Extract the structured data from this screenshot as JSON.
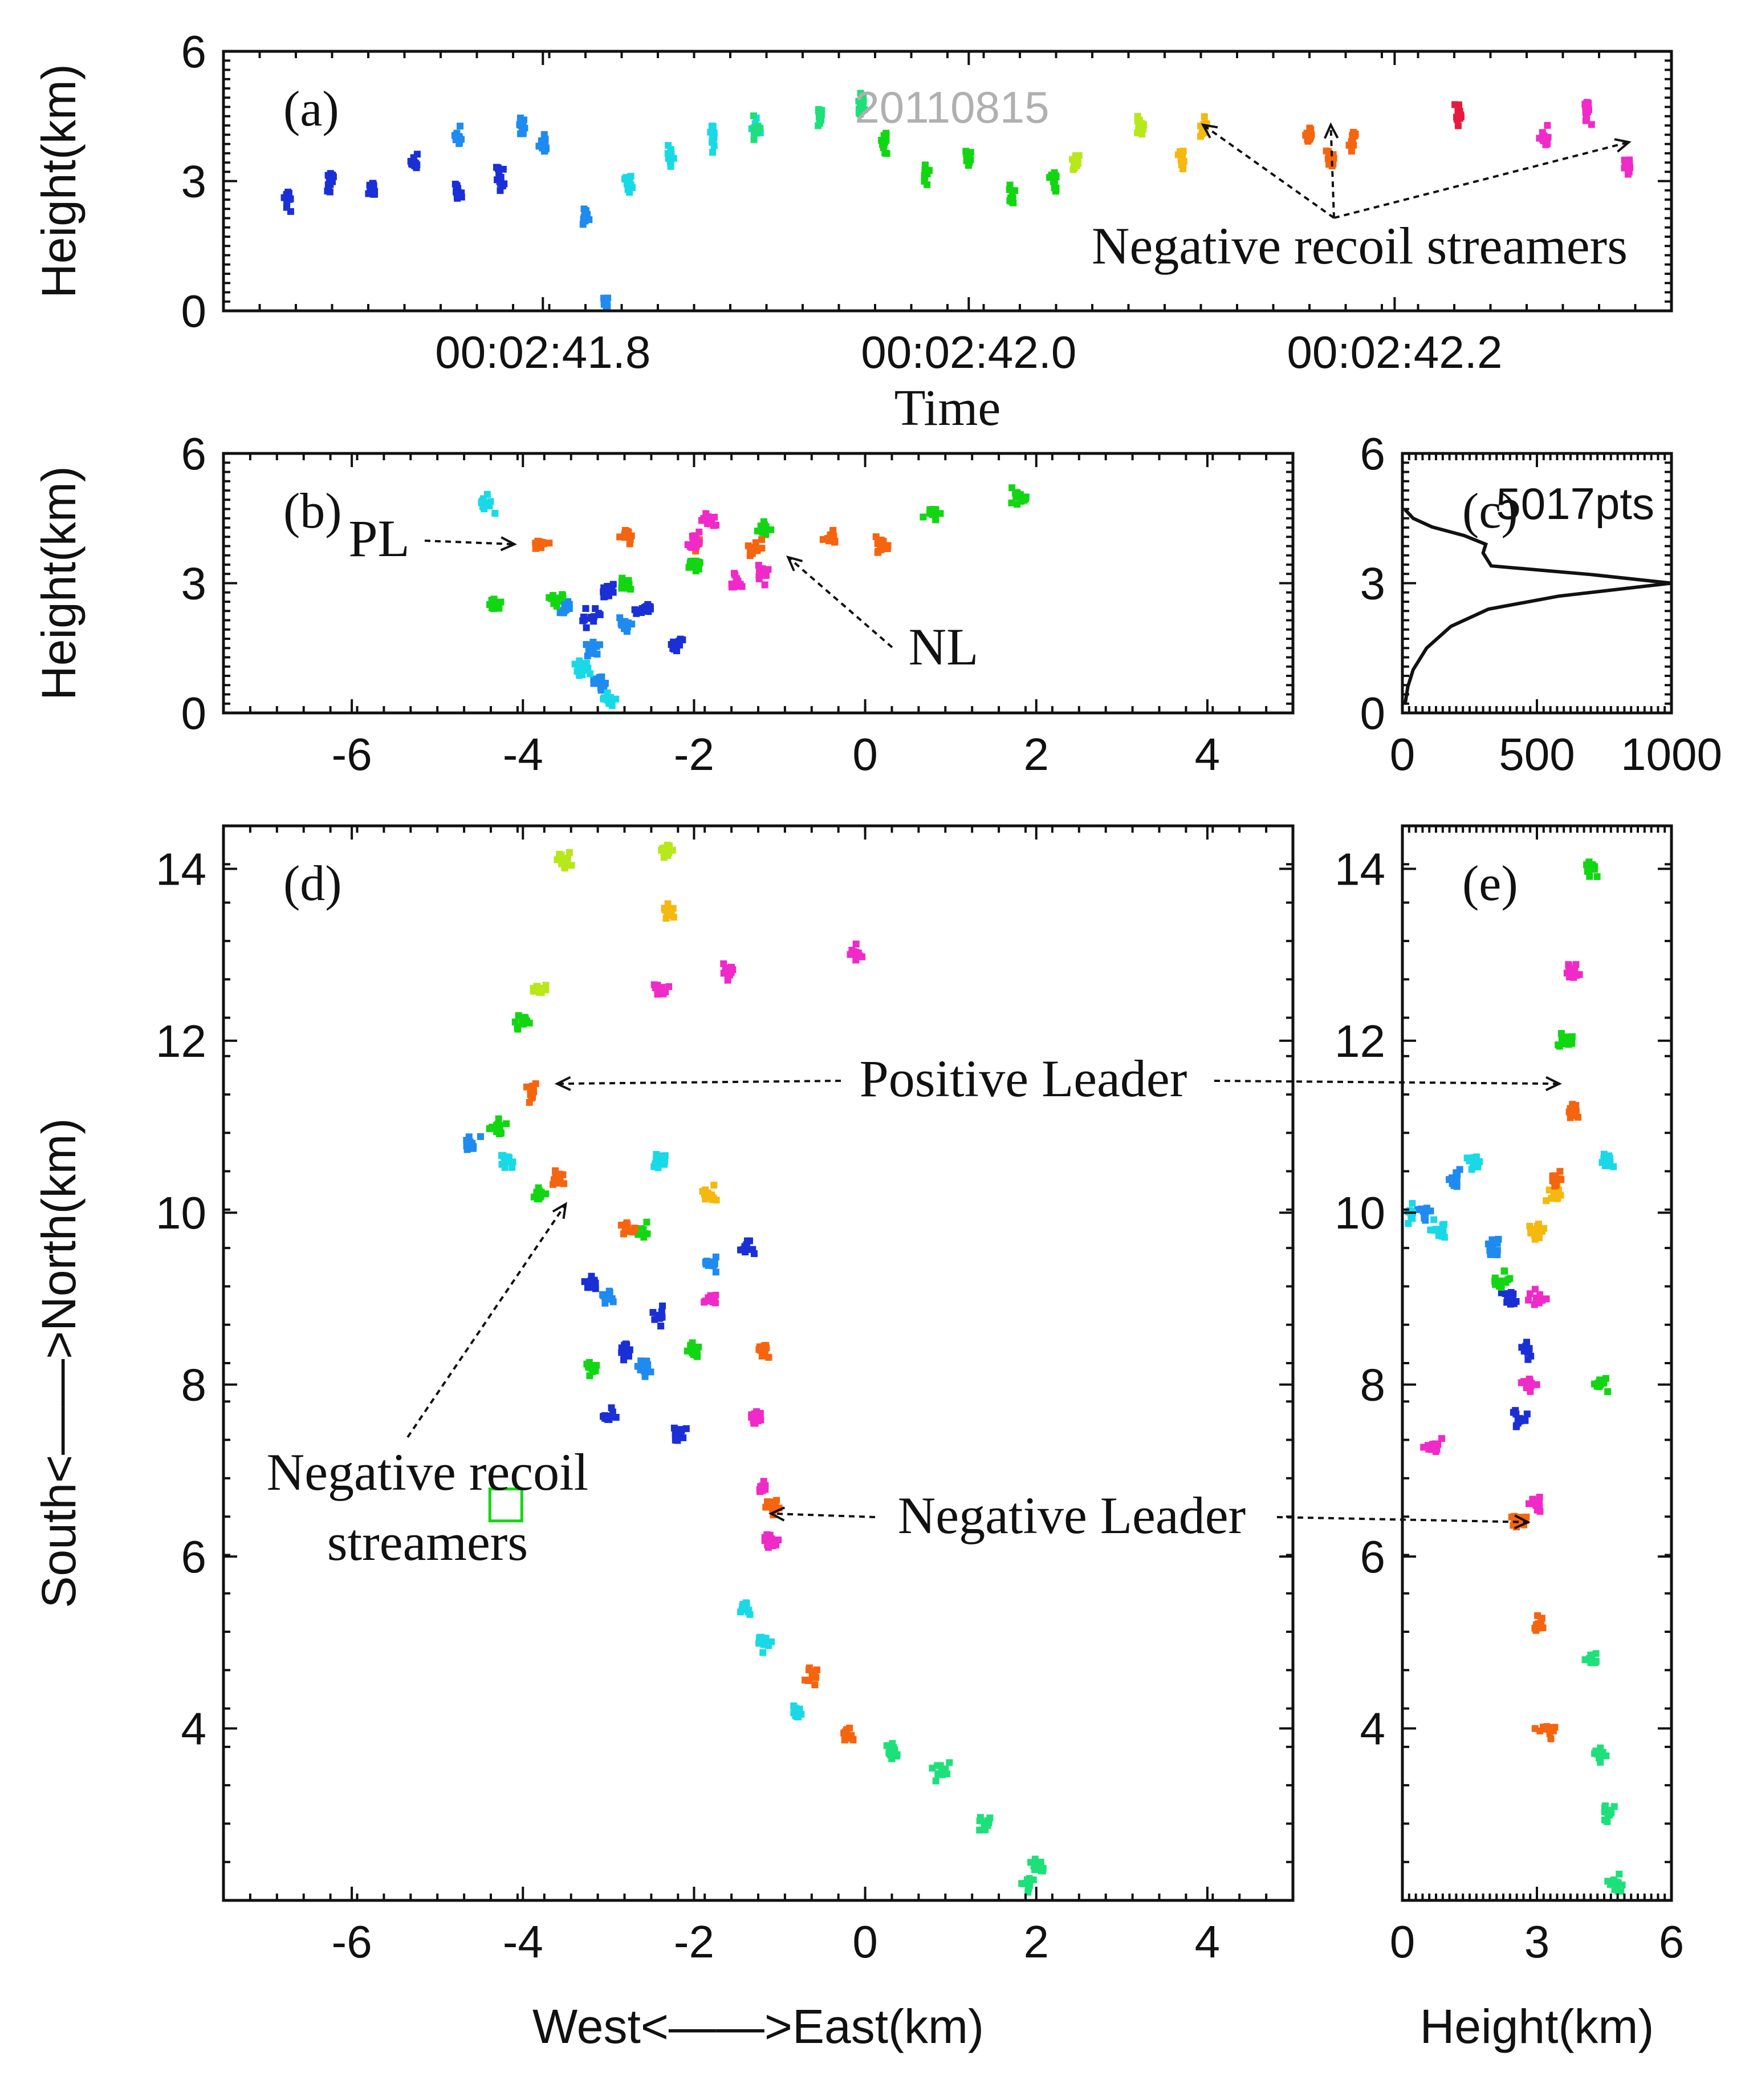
{
  "figure": {
    "date_label": "20110815",
    "points_label": "5017pts"
  },
  "chart_data": [
    {
      "id": "a",
      "type": "scatter",
      "panel_label": "(a)",
      "title": "",
      "xlabel": "Time",
      "ylabel": "Height(km)",
      "xlim": [
        41.65,
        42.33
      ],
      "ylim": [
        0,
        6
      ],
      "xticks": [
        41.8,
        42.0,
        42.2
      ],
      "xtick_labels": [
        "00:02:41.8",
        "00:02:42.0",
        "00:02:42.2"
      ],
      "yticks": [
        0,
        3,
        6
      ],
      "ytick_labels": [
        "0",
        "3",
        "6"
      ],
      "series": [
        {
          "name": "blue",
          "color": "#1a2fd6",
          "x": [
            41.68,
            41.7,
            41.72,
            41.74,
            41.76,
            41.78
          ],
          "y": [
            2.6,
            3.0,
            2.8,
            3.4,
            2.7,
            3.0
          ]
        },
        {
          "name": "azure",
          "color": "#1f8bf0",
          "x": [
            41.76,
            41.79,
            41.8,
            41.82,
            41.83
          ],
          "y": [
            4.0,
            4.3,
            3.9,
            2.2,
            0.1
          ]
        },
        {
          "name": "cyan",
          "color": "#19d9e6",
          "x": [
            41.84,
            41.86,
            41.88,
            41.9
          ],
          "y": [
            3.0,
            3.6,
            4.0,
            4.2
          ]
        },
        {
          "name": "spring-green",
          "color": "#1ee07a",
          "x": [
            41.9,
            41.93,
            41.95
          ],
          "y": [
            4.2,
            4.5,
            4.8
          ]
        },
        {
          "name": "green",
          "color": "#13d613",
          "x": [
            41.96,
            41.98,
            42.0,
            42.02,
            42.04
          ],
          "y": [
            3.9,
            3.2,
            3.5,
            2.6,
            3.0
          ]
        },
        {
          "name": "yellow-green",
          "color": "#b6e81a",
          "x": [
            42.05,
            42.08
          ],
          "y": [
            3.4,
            4.2
          ]
        },
        {
          "name": "orange",
          "color": "#f5b80f",
          "x": [
            42.1,
            42.11
          ],
          "y": [
            3.5,
            4.2
          ]
        },
        {
          "name": "dark-orange",
          "color": "#f5650f",
          "x": [
            42.16,
            42.17,
            42.18
          ],
          "y": [
            4.0,
            3.5,
            3.9
          ]
        },
        {
          "name": "red",
          "color": "#e61a3c",
          "x": [
            42.23
          ],
          "y": [
            4.6
          ]
        },
        {
          "name": "magenta",
          "color": "#f02ac8",
          "x": [
            42.27,
            42.29,
            42.31
          ],
          "y": [
            4.0,
            4.6,
            3.4
          ]
        }
      ],
      "annotations": [
        {
          "text": "Negative recoil streamers",
          "targets": [
            [
              42.11,
              4.3
            ],
            [
              42.17,
              4.3
            ],
            [
              42.31,
              3.9
            ]
          ]
        }
      ]
    },
    {
      "id": "b",
      "type": "scatter",
      "panel_label": "(b)",
      "title": "",
      "xlabel": "",
      "ylabel": "Height(km)",
      "xlim": [
        -7.5,
        5
      ],
      "ylim": [
        0,
        6
      ],
      "xticks": [
        -6,
        -4,
        -2,
        0,
        2,
        4
      ],
      "xtick_labels": [
        "-6",
        "-4",
        "-2",
        "0",
        "2",
        "4"
      ],
      "yticks": [
        0,
        3,
        6
      ],
      "ytick_labels": [
        "0",
        "3",
        "6"
      ],
      "series": [
        {
          "name": "blue",
          "color": "#1a2fd6",
          "x": [
            -3.2,
            -3.0,
            -2.6,
            -2.2
          ],
          "y": [
            2.2,
            2.8,
            2.4,
            1.6
          ]
        },
        {
          "name": "azure",
          "color": "#1f8bf0",
          "x": [
            -3.5,
            -3.2,
            -3.1,
            -2.8
          ],
          "y": [
            2.4,
            1.5,
            0.7,
            2.0
          ]
        },
        {
          "name": "cyan",
          "color": "#19d9e6",
          "x": [
            -4.4,
            -3.3,
            -3.0
          ],
          "y": [
            4.8,
            1.0,
            0.3
          ]
        },
        {
          "name": "green",
          "color": "#13d613",
          "x": [
            -4.3,
            -3.6,
            -2.8,
            -2.0,
            -1.2,
            0.8,
            1.8
          ],
          "y": [
            2.5,
            2.6,
            3.0,
            3.4,
            4.2,
            4.6,
            5.0
          ]
        },
        {
          "name": "orange",
          "color": "#f5650f",
          "x": [
            -3.8,
            -2.8,
            -2.0,
            -1.3,
            -0.4,
            0.2
          ],
          "y": [
            3.9,
            4.1,
            4.0,
            3.8,
            4.1,
            3.9
          ]
        },
        {
          "name": "magenta",
          "color": "#f02ac8",
          "x": [
            -2.0,
            -1.5,
            -1.2,
            -1.8
          ],
          "y": [
            4.0,
            3.0,
            3.2,
            4.5
          ]
        }
      ],
      "annotations": [
        {
          "text": "PL",
          "target": [
            -4.1,
            3.9
          ]
        },
        {
          "text": "NL",
          "target": [
            -0.9,
            3.6
          ]
        }
      ]
    },
    {
      "id": "c",
      "type": "line",
      "panel_label": "(c)",
      "title": "",
      "xlabel": "",
      "ylabel": "",
      "xlim": [
        0,
        1000
      ],
      "ylim": [
        0,
        6
      ],
      "xticks": [
        0,
        500,
        1000
      ],
      "xtick_labels": [
        "0",
        "500",
        "1000"
      ],
      "yticks": [
        0,
        3,
        6
      ],
      "ytick_labels": [
        "0",
        "3",
        "6"
      ],
      "series": [
        {
          "name": "height-histogram",
          "x": [
            10,
            20,
            40,
            90,
            180,
            320,
            580,
            1000,
            700,
            330,
            300,
            310,
            230,
            110,
            40,
            10
          ],
          "y": [
            0.2,
            0.6,
            1.0,
            1.5,
            2.0,
            2.4,
            2.7,
            3.0,
            3.2,
            3.4,
            3.7,
            3.9,
            4.1,
            4.3,
            4.5,
            4.7
          ]
        }
      ]
    },
    {
      "id": "d",
      "type": "scatter",
      "panel_label": "(d)",
      "title": "",
      "xlabel": "West<——>East(km)",
      "ylabel": "South<——>North(km)",
      "xlim": [
        -7.5,
        5
      ],
      "ylim": [
        2,
        14.5
      ],
      "xticks": [
        -6,
        -4,
        -2,
        0,
        2,
        4
      ],
      "xtick_labels": [
        "-6",
        "-4",
        "-2",
        "0",
        "2",
        "4"
      ],
      "yticks": [
        4,
        6,
        8,
        10,
        12,
        14
      ],
      "ytick_labels": [
        "4",
        "6",
        "8",
        "10",
        "12",
        "14"
      ],
      "series": [
        {
          "name": "blue",
          "color": "#1a2fd6",
          "x": [
            -3.2,
            -2.8,
            -2.4,
            -1.4,
            -3.0,
            -2.2
          ],
          "y": [
            9.2,
            8.4,
            8.8,
            9.6,
            7.6,
            7.4
          ]
        },
        {
          "name": "azure",
          "color": "#1f8bf0",
          "x": [
            -4.6,
            -3.0,
            -2.6,
            -1.8
          ],
          "y": [
            10.8,
            9.0,
            8.2,
            9.4
          ]
        },
        {
          "name": "cyan",
          "color": "#19d9e6",
          "x": [
            -4.2,
            -1.4,
            -1.2,
            -0.8,
            -2.4
          ],
          "y": [
            10.6,
            5.4,
            5.0,
            4.2,
            10.6
          ]
        },
        {
          "name": "spring-green",
          "color": "#1ee07a",
          "x": [
            0.3,
            0.9,
            1.4,
            1.9,
            2.0
          ],
          "y": [
            3.7,
            3.5,
            2.9,
            2.2,
            2.4
          ]
        },
        {
          "name": "green",
          "color": "#13d613",
          "x": [
            -4.0,
            -4.3,
            -3.8,
            -2.6,
            -2.0,
            -3.2
          ],
          "y": [
            12.2,
            11.0,
            10.2,
            9.8,
            8.4,
            8.2
          ]
        },
        {
          "name": "yellow-green",
          "color": "#b6e81a",
          "x": [
            -3.8,
            -3.5,
            -2.3
          ],
          "y": [
            12.6,
            14.1,
            14.2
          ]
        },
        {
          "name": "orange",
          "color": "#f5b80f",
          "x": [
            -2.3,
            -1.8
          ],
          "y": [
            13.5,
            10.2
          ]
        },
        {
          "name": "dark-orange",
          "color": "#f5650f",
          "x": [
            -3.9,
            -3.6,
            -2.8,
            -1.2,
            -1.1,
            -0.6,
            -0.2
          ],
          "y": [
            11.4,
            10.4,
            9.8,
            8.4,
            6.6,
            4.6,
            3.9
          ]
        },
        {
          "name": "magenta",
          "color": "#f02ac8",
          "x": [
            -2.4,
            -1.6,
            -1.8,
            -1.3,
            -1.2,
            -1.1,
            -0.1
          ],
          "y": [
            12.6,
            12.8,
            9.0,
            7.6,
            6.8,
            6.2,
            13.0
          ]
        }
      ],
      "annotations": [
        {
          "text": "Positive Leader",
          "target": [
            -3.6,
            11.5
          ]
        },
        {
          "text": "Negative Leader",
          "target": [
            -1.1,
            6.5
          ]
        },
        {
          "text": "Negative recoil",
          "target": [
            -3.5,
            10.1
          ]
        },
        {
          "text": "streamers",
          "target": [
            -3.5,
            10.1
          ]
        }
      ],
      "markers": [
        {
          "name": "hollow-square",
          "color": "#13d613",
          "x": [
            -4.2
          ],
          "y": [
            6.6
          ]
        }
      ]
    },
    {
      "id": "e",
      "type": "scatter",
      "panel_label": "(e)",
      "title": "",
      "xlabel": "Height(km)",
      "ylabel": "",
      "xlim": [
        0,
        6
      ],
      "ylim": [
        2,
        14.5
      ],
      "xticks": [
        0,
        3,
        6
      ],
      "xtick_labels": [
        "0",
        "3",
        "6"
      ],
      "yticks": [
        4,
        6,
        8,
        10,
        12,
        14
      ],
      "ytick_labels": [
        "4",
        "6",
        "8",
        "10",
        "12",
        "14"
      ],
      "series": [
        {
          "name": "blue",
          "color": "#1a2fd6",
          "x": [
            2.4,
            2.8,
            2.6
          ],
          "y": [
            9.0,
            8.4,
            7.6
          ]
        },
        {
          "name": "azure",
          "color": "#1f8bf0",
          "x": [
            0.5,
            1.2,
            2.0
          ],
          "y": [
            10.0,
            10.4,
            9.6
          ]
        },
        {
          "name": "cyan",
          "color": "#19d9e6",
          "x": [
            0.2,
            0.8,
            1.6,
            4.6
          ],
          "y": [
            10.0,
            9.8,
            10.6,
            10.6
          ]
        },
        {
          "name": "spring-green",
          "color": "#1ee07a",
          "x": [
            4.2,
            4.4,
            4.6,
            4.8
          ],
          "y": [
            4.8,
            3.7,
            3.0,
            2.2
          ]
        },
        {
          "name": "green",
          "color": "#13d613",
          "x": [
            2.2,
            3.6,
            4.4,
            4.2
          ],
          "y": [
            9.2,
            12.0,
            8.0,
            14.0
          ]
        },
        {
          "name": "orange",
          "color": "#f5b80f",
          "x": [
            3.0,
            3.4
          ],
          "y": [
            9.8,
            10.2
          ]
        },
        {
          "name": "dark-orange",
          "color": "#f5650f",
          "x": [
            3.8,
            3.4,
            2.6,
            3.0,
            3.2
          ],
          "y": [
            11.2,
            10.4,
            6.4,
            5.2,
            4.0
          ]
        },
        {
          "name": "magenta",
          "color": "#f02ac8",
          "x": [
            3.8,
            3.0,
            2.8,
            3.0,
            0.7
          ],
          "y": [
            12.8,
            9.0,
            8.0,
            6.6,
            7.3
          ]
        }
      ],
      "annotations": [
        {
          "text": "Positive Leader",
          "target": [
            3.5,
            11.5
          ]
        },
        {
          "text": "Negative Leader",
          "target": [
            2.8,
            6.4
          ]
        }
      ]
    }
  ]
}
